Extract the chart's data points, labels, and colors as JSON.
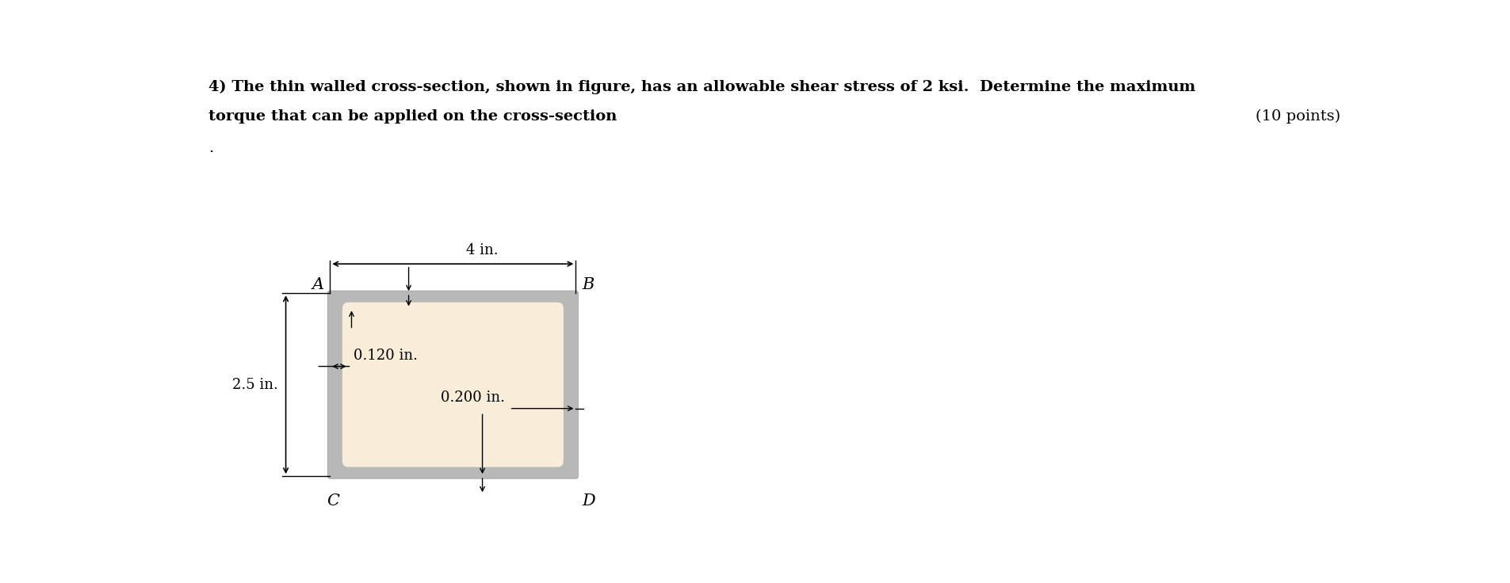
{
  "bg_color": "#ffffff",
  "outer_color": "#b8b8b8",
  "inner_color": "#f7edd8",
  "font_family": "serif",
  "title_line1": "4) The thin walled cross-section, shown in figure, has an allowable shear stress of 2 ksi.  Determine the maximum",
  "title_line2": "torque that can be applied on the cross-section",
  "dot": ".",
  "points_text": "(10 points)",
  "title_fontsize": 14,
  "label_fontsize": 15,
  "dim_fontsize": 13,
  "ox": 2.3,
  "oy": 0.7,
  "ow": 4.0,
  "oh": 3.0,
  "wall_lr": 0.3,
  "wall_tb": 0.25
}
